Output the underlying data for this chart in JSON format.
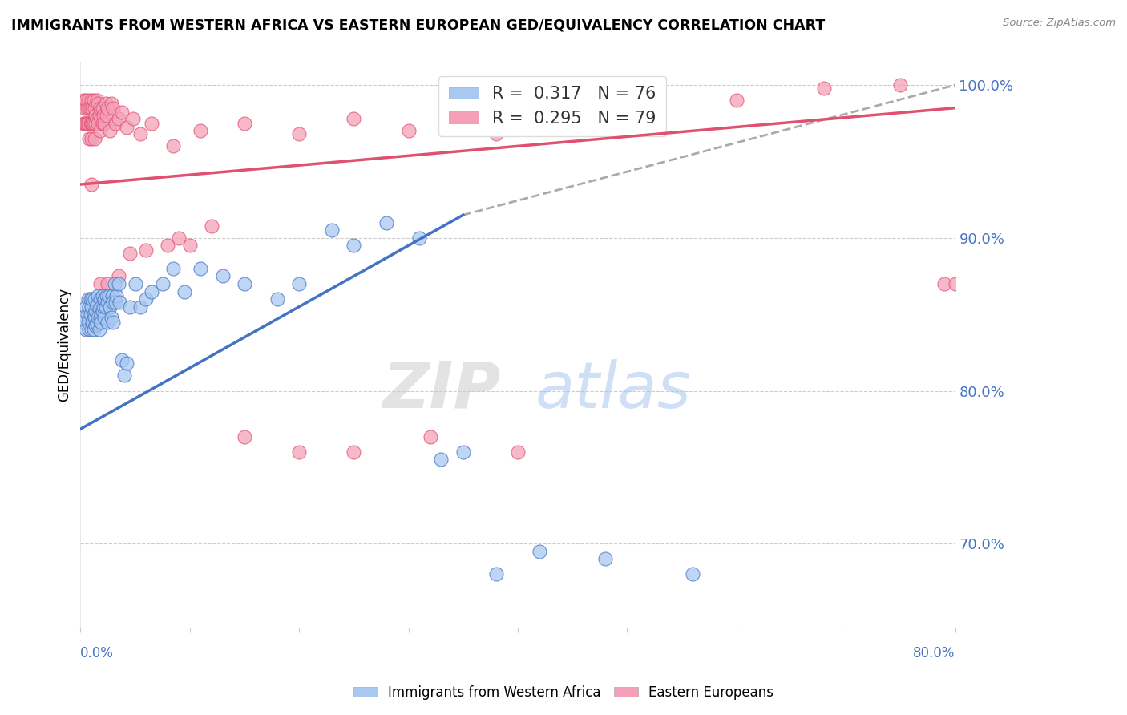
{
  "title": "IMMIGRANTS FROM WESTERN AFRICA VS EASTERN EUROPEAN GED/EQUIVALENCY CORRELATION CHART",
  "source": "Source: ZipAtlas.com",
  "ylabel": "GED/Equivalency",
  "right_ytick_labels": [
    "100.0%",
    "90.0%",
    "80.0%",
    "70.0%"
  ],
  "right_ytick_values": [
    1.0,
    0.9,
    0.8,
    0.7
  ],
  "xlim": [
    0.0,
    0.8
  ],
  "ylim": [
    0.645,
    1.015
  ],
  "legend_label1": "Immigrants from Western Africa",
  "legend_label2": "Eastern Europeans",
  "color_blue": "#A8C8F0",
  "color_pink": "#F5A0B8",
  "color_blue_line": "#4472C4",
  "color_pink_line": "#E05070",
  "color_dashed": "#AAAAAA",
  "blue_line_x0": 0.0,
  "blue_line_y0": 0.775,
  "blue_line_x1": 0.35,
  "blue_line_y1": 0.915,
  "dash_line_x0": 0.35,
  "dash_line_y0": 0.915,
  "dash_line_x1": 0.8,
  "dash_line_y1": 1.0,
  "pink_line_x0": 0.0,
  "pink_line_y0": 0.935,
  "pink_line_x1": 0.8,
  "pink_line_y1": 0.985,
  "blue_x": [
    0.003,
    0.005,
    0.005,
    0.006,
    0.007,
    0.007,
    0.008,
    0.008,
    0.009,
    0.009,
    0.01,
    0.01,
    0.011,
    0.011,
    0.012,
    0.012,
    0.013,
    0.013,
    0.014,
    0.014,
    0.015,
    0.015,
    0.016,
    0.016,
    0.017,
    0.017,
    0.018,
    0.018,
    0.019,
    0.019,
    0.02,
    0.02,
    0.021,
    0.022,
    0.022,
    0.023,
    0.024,
    0.025,
    0.025,
    0.026,
    0.027,
    0.028,
    0.029,
    0.03,
    0.03,
    0.031,
    0.032,
    0.033,
    0.035,
    0.036,
    0.038,
    0.04,
    0.042,
    0.045,
    0.05,
    0.055,
    0.06,
    0.065,
    0.075,
    0.085,
    0.095,
    0.11,
    0.13,
    0.15,
    0.18,
    0.2,
    0.23,
    0.25,
    0.28,
    0.31,
    0.33,
    0.35,
    0.38,
    0.42,
    0.48,
    0.56
  ],
  "blue_y": [
    0.845,
    0.855,
    0.84,
    0.85,
    0.86,
    0.845,
    0.855,
    0.84,
    0.85,
    0.86,
    0.84,
    0.855,
    0.845,
    0.86,
    0.85,
    0.84,
    0.86,
    0.848,
    0.852,
    0.843,
    0.856,
    0.844,
    0.848,
    0.862,
    0.854,
    0.84,
    0.86,
    0.848,
    0.855,
    0.845,
    0.852,
    0.862,
    0.855,
    0.86,
    0.848,
    0.855,
    0.862,
    0.858,
    0.845,
    0.862,
    0.855,
    0.848,
    0.862,
    0.858,
    0.845,
    0.87,
    0.858,
    0.862,
    0.87,
    0.858,
    0.82,
    0.81,
    0.818,
    0.855,
    0.87,
    0.855,
    0.86,
    0.865,
    0.87,
    0.88,
    0.865,
    0.88,
    0.875,
    0.87,
    0.86,
    0.87,
    0.905,
    0.895,
    0.91,
    0.9,
    0.755,
    0.76,
    0.68,
    0.695,
    0.69,
    0.68
  ],
  "pink_x": [
    0.003,
    0.003,
    0.004,
    0.004,
    0.005,
    0.005,
    0.006,
    0.006,
    0.007,
    0.007,
    0.008,
    0.008,
    0.009,
    0.009,
    0.01,
    0.01,
    0.01,
    0.011,
    0.011,
    0.012,
    0.012,
    0.013,
    0.013,
    0.014,
    0.014,
    0.015,
    0.015,
    0.016,
    0.016,
    0.017,
    0.018,
    0.018,
    0.019,
    0.02,
    0.02,
    0.021,
    0.022,
    0.023,
    0.024,
    0.025,
    0.027,
    0.028,
    0.03,
    0.032,
    0.035,
    0.038,
    0.042,
    0.048,
    0.055,
    0.065,
    0.085,
    0.11,
    0.15,
    0.2,
    0.25,
    0.3,
    0.38,
    0.45,
    0.52,
    0.6,
    0.68,
    0.75,
    0.79,
    0.8,
    0.01,
    0.018,
    0.025,
    0.035,
    0.045,
    0.06,
    0.08,
    0.09,
    0.1,
    0.12,
    0.15,
    0.2,
    0.25,
    0.32,
    0.4
  ],
  "pink_y": [
    0.975,
    0.99,
    0.985,
    0.975,
    0.99,
    0.975,
    0.985,
    0.975,
    0.99,
    0.975,
    0.985,
    0.965,
    0.975,
    0.985,
    0.99,
    0.975,
    0.965,
    0.985,
    0.975,
    0.99,
    0.975,
    0.985,
    0.965,
    0.98,
    0.975,
    0.99,
    0.978,
    0.975,
    0.988,
    0.98,
    0.985,
    0.97,
    0.978,
    0.985,
    0.975,
    0.98,
    0.975,
    0.988,
    0.98,
    0.985,
    0.97,
    0.988,
    0.985,
    0.975,
    0.978,
    0.982,
    0.972,
    0.978,
    0.968,
    0.975,
    0.96,
    0.97,
    0.975,
    0.968,
    0.978,
    0.97,
    0.968,
    0.975,
    0.985,
    0.99,
    0.998,
    1.0,
    0.87,
    0.87,
    0.935,
    0.87,
    0.87,
    0.875,
    0.89,
    0.892,
    0.895,
    0.9,
    0.895,
    0.908,
    0.77,
    0.76,
    0.76,
    0.77,
    0.76
  ]
}
